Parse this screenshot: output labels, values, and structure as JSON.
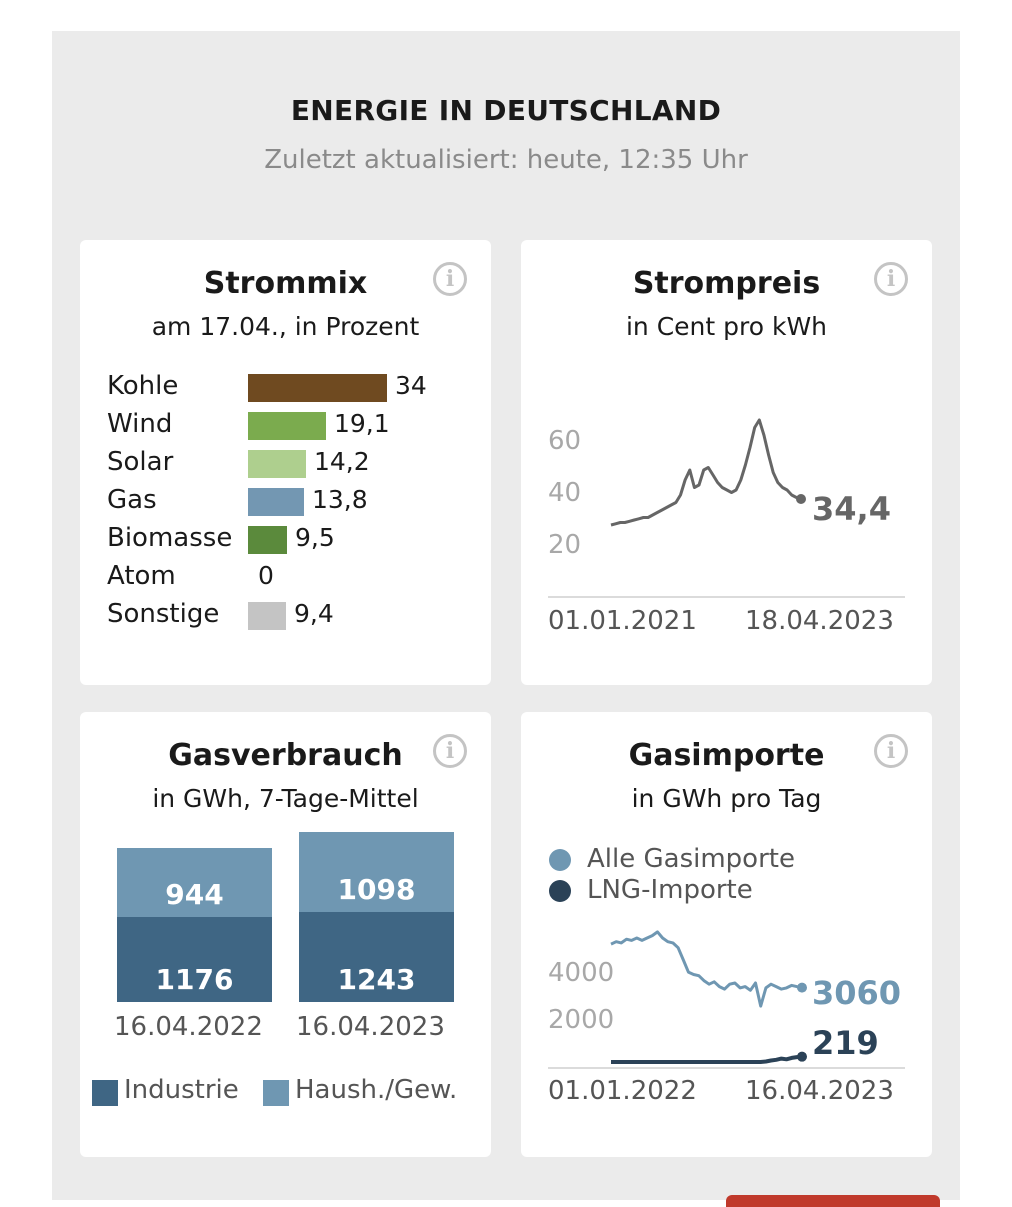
{
  "header": {
    "title": "ENERGIE IN DEUTSCHLAND",
    "updated": "Zuletzt aktualisiert: heute, 12:35 Uhr"
  },
  "info_icon": "info-icon",
  "colors": {
    "kohle": "#6f4a20",
    "wind": "#7bab4e",
    "solar": "#aecf8e",
    "gas": "#7397b2",
    "biomasse": "#5b8a3c",
    "sonstige": "#c4c4c4",
    "line_grey": "#666666",
    "gas_light": "#6f97b2",
    "gas_dark": "#3f6684",
    "lng": "#2b4257"
  },
  "chart_data": [
    {
      "type": "bar",
      "title": "Strommix",
      "subtitle": "am 17.04., in Prozent",
      "categories": [
        "Kohle",
        "Wind",
        "Solar",
        "Gas",
        "Biomasse",
        "Atom",
        "Sonstige"
      ],
      "values": [
        34,
        19.1,
        14.2,
        13.8,
        9.5,
        0,
        9.4
      ],
      "value_labels": [
        "34",
        "19,1",
        "14,2",
        "13,8",
        "9,5",
        "0",
        "9,4"
      ],
      "colors": [
        "#6f4a20",
        "#7bab4e",
        "#aecf8e",
        "#7397b2",
        "#5b8a3c",
        "#c4c4c4",
        "#c4c4c4"
      ],
      "orientation": "horizontal"
    },
    {
      "type": "line",
      "title": "Strompreis",
      "subtitle": "in Cent pro kWh",
      "x_start": "01.01.2021",
      "x_end": "18.04.2023",
      "yticks": [
        "60",
        "40",
        "20"
      ],
      "ytick_values": [
        60,
        40,
        20
      ],
      "ylim": [
        18,
        70
      ],
      "last_value": 34.4,
      "last_label": "34,4",
      "values": [
        24,
        24.5,
        25,
        25,
        25.5,
        26,
        26.5,
        27,
        27,
        28,
        29,
        30,
        31,
        32,
        33,
        36,
        42,
        46,
        39,
        40,
        46,
        47,
        44,
        41,
        39,
        38,
        37,
        38,
        42,
        48,
        55,
        63,
        66,
        60,
        52,
        45,
        41,
        39,
        38,
        36,
        35,
        34.4
      ]
    },
    {
      "type": "bar",
      "title": "Gasverbrauch",
      "subtitle": "in GWh, 7-Tage-Mittel",
      "categories": [
        "16.04.2022",
        "16.04.2023"
      ],
      "series": [
        {
          "name": "Industrie",
          "values": [
            1176,
            1243
          ],
          "labels": [
            "1176",
            "1243"
          ]
        },
        {
          "name": "Haush./Gew.",
          "values": [
            944,
            1098
          ],
          "labels": [
            "944",
            "1098"
          ]
        }
      ],
      "stacked": true
    },
    {
      "type": "line",
      "title": "Gasimporte",
      "subtitle": "in GWh pro Tag",
      "x_start": "01.01.2022",
      "x_end": "16.04.2023",
      "yticks": [
        "4000",
        "2000"
      ],
      "ytick_values": [
        4000,
        2000
      ],
      "ylim": [
        0,
        5800
      ],
      "series": [
        {
          "name": "Alle Gasimporte",
          "last_label": "3060",
          "last_value": 3060,
          "values": [
            4850,
            4950,
            4900,
            5050,
            5000,
            5100,
            5000,
            5100,
            5200,
            5350,
            5100,
            4950,
            4900,
            4700,
            4200,
            3700,
            3600,
            3550,
            3350,
            3200,
            3300,
            3100,
            3000,
            3200,
            3250,
            3050,
            3100,
            2950,
            3250,
            2300,
            3050,
            3200,
            3100,
            3000,
            3050,
            3150,
            3100,
            3060
          ]
        },
        {
          "name": "LNG-Importe",
          "last_label": "219",
          "last_value": 219,
          "values": [
            0,
            0,
            0,
            0,
            0,
            0,
            0,
            0,
            0,
            0,
            0,
            0,
            0,
            0,
            0,
            0,
            0,
            0,
            0,
            0,
            0,
            0,
            0,
            0,
            0,
            0,
            0,
            0,
            0,
            0,
            20,
            60,
            90,
            140,
            110,
            170,
            200,
            219
          ]
        }
      ]
    }
  ]
}
